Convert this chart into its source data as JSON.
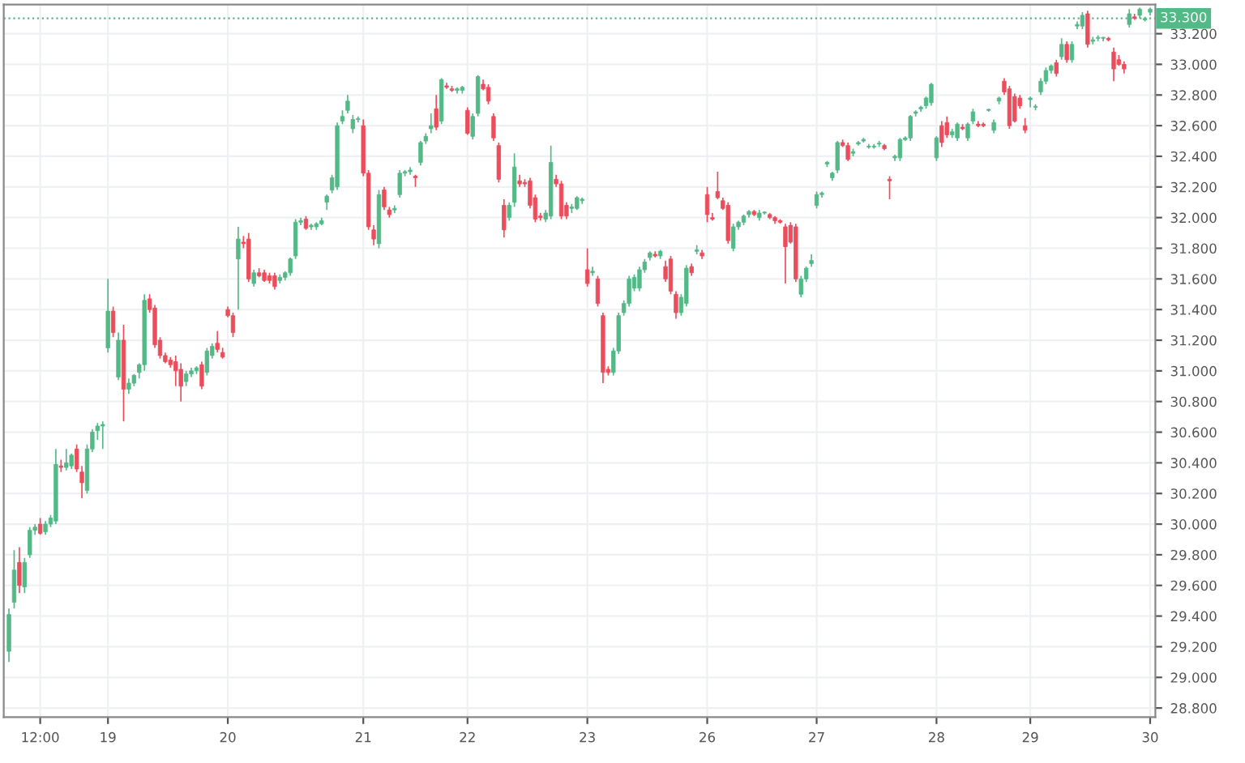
{
  "chart_data": {
    "type": "candlestick",
    "categories": [
      null,
      null,
      null,
      null,
      null,
      null,
      "12:00",
      null,
      null,
      null,
      null,
      null,
      null,
      null,
      null,
      null,
      null,
      null,
      null,
      "19",
      null,
      null,
      null,
      null,
      null,
      null,
      null,
      null,
      null,
      null,
      null,
      null,
      null,
      null,
      null,
      null,
      null,
      null,
      null,
      null,
      null,
      null,
      "20",
      null,
      null,
      null,
      null,
      null,
      null,
      null,
      null,
      null,
      null,
      null,
      null,
      null,
      null,
      null,
      null,
      null,
      null,
      null,
      null,
      null,
      null,
      null,
      null,
      null,
      "21",
      null,
      null,
      null,
      null,
      null,
      null,
      null,
      null,
      null,
      null,
      null,
      null,
      null,
      null,
      null,
      null,
      null,
      null,
      null,
      "22",
      null,
      null,
      null,
      null,
      null,
      null,
      null,
      null,
      null,
      null,
      null,
      null,
      null,
      null,
      null,
      null,
      null,
      null,
      null,
      null,
      null,
      null,
      "23",
      null,
      null,
      null,
      null,
      null,
      null,
      null,
      null,
      null,
      null,
      null,
      null,
      null,
      null,
      null,
      null,
      null,
      null,
      null,
      null,
      null,
      null,
      "26",
      null,
      null,
      null,
      null,
      null,
      null,
      null,
      null,
      null,
      null,
      null,
      null,
      null,
      null,
      null,
      null,
      null,
      null,
      null,
      null,
      "27",
      null,
      null,
      null,
      null,
      null,
      null,
      null,
      null,
      null,
      null,
      null,
      null,
      null,
      null,
      null,
      null,
      null,
      null,
      null,
      null,
      null,
      null,
      "28",
      null,
      null,
      null,
      null,
      null,
      null,
      null,
      null,
      null,
      null,
      null,
      null,
      null,
      null,
      null,
      null,
      null,
      "29",
      null,
      null,
      null,
      null,
      null,
      null,
      null,
      null,
      null,
      null,
      null,
      null,
      null,
      null,
      null,
      null,
      null,
      null,
      null,
      null,
      null,
      null,
      "30"
    ],
    "ohlc": [
      [
        29.17,
        29.45,
        29.1,
        29.41
      ],
      [
        29.49,
        29.83,
        29.45,
        29.7
      ],
      [
        29.75,
        29.85,
        29.55,
        29.6
      ],
      [
        29.59,
        29.78,
        29.55,
        29.75
      ],
      [
        29.8,
        29.98,
        29.78,
        29.96
      ],
      [
        29.96,
        30.0,
        29.93,
        29.98
      ],
      [
        30.0,
        30.04,
        29.93,
        29.94
      ],
      [
        29.95,
        30.02,
        29.93,
        30.0
      ],
      [
        30.0,
        30.06,
        29.98,
        30.04
      ],
      [
        30.02,
        30.49,
        30.0,
        30.39
      ],
      [
        30.38,
        30.42,
        30.34,
        30.37
      ],
      [
        30.37,
        30.49,
        30.35,
        30.4
      ],
      [
        30.38,
        30.46,
        30.36,
        30.45
      ],
      [
        30.49,
        30.52,
        30.34,
        30.36
      ],
      [
        30.34,
        30.38,
        30.17,
        30.27
      ],
      [
        30.22,
        30.52,
        30.2,
        30.49
      ],
      [
        30.49,
        30.62,
        30.47,
        30.6
      ],
      [
        30.61,
        30.66,
        30.55,
        30.64
      ],
      [
        30.64,
        30.67,
        30.49,
        30.65
      ],
      [
        31.15,
        31.6,
        31.12,
        31.39
      ],
      [
        31.39,
        31.42,
        31.22,
        31.25
      ],
      [
        30.96,
        31.25,
        30.94,
        31.2
      ],
      [
        31.2,
        31.3,
        30.67,
        30.88
      ],
      [
        30.88,
        30.95,
        30.85,
        30.92
      ],
      [
        30.92,
        30.98,
        30.9,
        30.97
      ],
      [
        30.99,
        31.05,
        30.95,
        31.04
      ],
      [
        31.04,
        31.5,
        31.0,
        31.46
      ],
      [
        31.47,
        31.5,
        31.38,
        31.4
      ],
      [
        31.41,
        31.43,
        31.15,
        31.17
      ],
      [
        31.2,
        31.22,
        31.08,
        31.1
      ],
      [
        31.1,
        31.12,
        31.05,
        31.06
      ],
      [
        31.07,
        31.09,
        31.02,
        31.04
      ],
      [
        31.06,
        31.1,
        30.9,
        31.0
      ],
      [
        31.01,
        31.05,
        30.8,
        30.9
      ],
      [
        30.93,
        31.0,
        30.9,
        30.98
      ],
      [
        30.98,
        31.02,
        30.96,
        31.0
      ],
      [
        31.0,
        31.03,
        30.98,
        31.02
      ],
      [
        31.04,
        31.06,
        30.88,
        30.9
      ],
      [
        30.99,
        31.15,
        30.97,
        31.13
      ],
      [
        31.1,
        31.18,
        31.08,
        31.16
      ],
      [
        31.18,
        31.26,
        31.12,
        31.14
      ],
      [
        31.12,
        31.15,
        31.08,
        31.09
      ],
      [
        31.4,
        31.42,
        31.35,
        31.36
      ],
      [
        31.36,
        31.38,
        31.22,
        31.25
      ],
      [
        31.73,
        31.94,
        31.4,
        31.86
      ],
      [
        31.84,
        31.88,
        31.8,
        31.83
      ],
      [
        31.86,
        31.9,
        31.58,
        31.6
      ],
      [
        31.57,
        31.66,
        31.55,
        31.64
      ],
      [
        31.64,
        31.67,
        31.61,
        31.62
      ],
      [
        31.64,
        31.66,
        31.58,
        31.59
      ],
      [
        31.62,
        31.64,
        31.57,
        31.59
      ],
      [
        31.62,
        31.64,
        31.53,
        31.55
      ],
      [
        31.59,
        31.63,
        31.57,
        31.61
      ],
      [
        31.61,
        31.65,
        31.59,
        31.64
      ],
      [
        31.64,
        31.74,
        31.62,
        31.73
      ],
      [
        31.75,
        31.99,
        31.73,
        31.97
      ],
      [
        31.97,
        32.0,
        31.95,
        31.98
      ],
      [
        31.99,
        32.01,
        31.92,
        31.93
      ],
      [
        31.94,
        31.96,
        31.92,
        31.95
      ],
      [
        31.94,
        31.97,
        31.92,
        31.96
      ],
      [
        31.96,
        32.0,
        31.95,
        31.98
      ],
      [
        32.1,
        32.15,
        32.05,
        32.14
      ],
      [
        32.18,
        32.28,
        32.16,
        32.26
      ],
      [
        32.2,
        32.62,
        32.18,
        32.6
      ],
      [
        32.63,
        32.7,
        32.61,
        32.66
      ],
      [
        32.7,
        32.8,
        32.68,
        32.76
      ],
      [
        32.58,
        32.67,
        32.55,
        32.64
      ],
      [
        32.64,
        32.66,
        32.62,
        32.64
      ],
      [
        32.6,
        32.64,
        32.27,
        32.29
      ],
      [
        32.29,
        32.31,
        31.92,
        31.94
      ],
      [
        31.92,
        31.95,
        31.82,
        31.86
      ],
      [
        31.83,
        32.18,
        31.8,
        32.15
      ],
      [
        32.18,
        32.2,
        32.05,
        32.07
      ],
      [
        32.05,
        32.07,
        32.0,
        32.02
      ],
      [
        32.05,
        32.08,
        32.03,
        32.06
      ],
      [
        32.15,
        32.31,
        32.13,
        32.29
      ],
      [
        32.29,
        32.31,
        32.27,
        32.3
      ],
      [
        32.3,
        32.33,
        32.28,
        32.31
      ],
      [
        32.27,
        32.28,
        32.2,
        32.26
      ],
      [
        32.36,
        32.5,
        32.34,
        32.49
      ],
      [
        32.5,
        32.55,
        32.48,
        32.53
      ],
      [
        32.58,
        32.68,
        32.55,
        32.6
      ],
      [
        32.71,
        32.8,
        32.57,
        32.59
      ],
      [
        32.63,
        32.91,
        32.61,
        32.9
      ],
      [
        32.86,
        32.88,
        32.84,
        32.85
      ],
      [
        32.84,
        32.86,
        32.82,
        32.83
      ],
      [
        32.83,
        32.85,
        32.81,
        32.84
      ],
      [
        32.83,
        32.86,
        32.81,
        32.85
      ],
      [
        32.7,
        32.72,
        32.54,
        32.55
      ],
      [
        32.53,
        32.68,
        32.51,
        32.66
      ],
      [
        32.68,
        32.93,
        32.66,
        32.92
      ],
      [
        32.87,
        32.9,
        32.83,
        32.84
      ],
      [
        32.85,
        32.87,
        32.74,
        32.76
      ],
      [
        32.66,
        32.68,
        32.5,
        32.52
      ],
      [
        32.47,
        32.49,
        32.23,
        32.25
      ],
      [
        32.08,
        32.12,
        31.87,
        31.92
      ],
      [
        32.0,
        32.1,
        31.98,
        32.08
      ],
      [
        32.1,
        32.42,
        32.07,
        32.33
      ],
      [
        32.24,
        32.28,
        32.2,
        32.22
      ],
      [
        32.23,
        32.25,
        32.2,
        32.22
      ],
      [
        32.24,
        32.26,
        32.06,
        32.08
      ],
      [
        32.13,
        32.15,
        31.97,
        31.99
      ],
      [
        32.01,
        32.03,
        31.98,
        32.0
      ],
      [
        31.99,
        32.05,
        31.97,
        32.03
      ],
      [
        32.01,
        32.47,
        31.99,
        32.36
      ],
      [
        32.25,
        32.28,
        32.2,
        32.22
      ],
      [
        32.22,
        32.24,
        31.99,
        32.01
      ],
      [
        32.08,
        32.1,
        31.99,
        32.01
      ],
      [
        32.06,
        32.09,
        32.03,
        32.07
      ],
      [
        32.06,
        32.14,
        32.05,
        32.13
      ],
      [
        32.11,
        32.13,
        32.09,
        32.12
      ],
      [
        31.66,
        31.8,
        31.55,
        31.57
      ],
      [
        31.64,
        31.68,
        31.62,
        31.65
      ],
      [
        31.6,
        31.62,
        31.42,
        31.44
      ],
      [
        31.36,
        31.38,
        30.92,
        30.99
      ],
      [
        31.01,
        31.03,
        30.97,
        30.99
      ],
      [
        30.99,
        31.15,
        30.97,
        31.13
      ],
      [
        31.13,
        31.38,
        31.11,
        31.36
      ],
      [
        31.38,
        31.46,
        31.36,
        31.44
      ],
      [
        31.44,
        31.62,
        31.42,
        31.6
      ],
      [
        31.54,
        31.63,
        31.52,
        31.61
      ],
      [
        31.54,
        31.68,
        31.52,
        31.66
      ],
      [
        31.66,
        31.73,
        31.64,
        31.71
      ],
      [
        31.74,
        31.78,
        31.72,
        31.77
      ],
      [
        31.76,
        31.78,
        31.74,
        31.75
      ],
      [
        31.75,
        31.79,
        31.73,
        31.78
      ],
      [
        31.68,
        31.72,
        31.58,
        31.6
      ],
      [
        31.73,
        31.75,
        31.5,
        31.52
      ],
      [
        31.5,
        31.52,
        31.34,
        31.38
      ],
      [
        31.38,
        31.5,
        31.36,
        31.48
      ],
      [
        31.44,
        31.69,
        31.42,
        31.67
      ],
      [
        31.68,
        31.7,
        31.62,
        31.64
      ],
      [
        31.78,
        31.82,
        31.76,
        31.79
      ],
      [
        31.77,
        31.79,
        31.73,
        31.75
      ],
      [
        32.15,
        32.2,
        31.97,
        32.02
      ],
      [
        32.0,
        32.03,
        31.98,
        31.99
      ],
      [
        32.17,
        32.3,
        32.12,
        32.13
      ],
      [
        32.11,
        32.13,
        32.05,
        32.06
      ],
      [
        32.08,
        32.1,
        31.83,
        31.85
      ],
      [
        31.8,
        31.96,
        31.78,
        31.94
      ],
      [
        31.94,
        31.98,
        31.92,
        31.97
      ],
      [
        31.97,
        32.02,
        31.95,
        32.01
      ],
      [
        32.02,
        32.05,
        32.0,
        32.04
      ],
      [
        32.04,
        32.05,
        32.01,
        32.02
      ],
      [
        32.0,
        32.05,
        31.98,
        32.03
      ],
      [
        32.03,
        32.04,
        32.02,
        32.03
      ],
      [
        32.02,
        32.03,
        31.99,
        32.0
      ],
      [
        32.0,
        32.01,
        31.96,
        31.98
      ],
      [
        31.98,
        31.99,
        31.96,
        31.97
      ],
      [
        31.94,
        31.96,
        31.57,
        31.81
      ],
      [
        31.95,
        31.97,
        31.83,
        31.84
      ],
      [
        31.94,
        31.96,
        31.58,
        31.6
      ],
      [
        31.5,
        31.62,
        31.48,
        31.6
      ],
      [
        31.6,
        31.68,
        31.58,
        31.67
      ],
      [
        31.7,
        31.76,
        31.68,
        31.72
      ],
      [
        32.08,
        32.17,
        32.06,
        32.15
      ],
      [
        32.15,
        32.17,
        32.13,
        32.16
      ],
      [
        32.35,
        32.37,
        32.33,
        32.36
      ],
      [
        32.26,
        32.3,
        32.24,
        32.29
      ],
      [
        32.31,
        32.5,
        32.29,
        32.49
      ],
      [
        32.49,
        32.51,
        32.46,
        32.47
      ],
      [
        32.47,
        32.49,
        32.37,
        32.38
      ],
      [
        32.42,
        32.45,
        32.4,
        32.43
      ],
      [
        32.48,
        32.5,
        32.47,
        32.49
      ],
      [
        32.5,
        32.52,
        32.49,
        32.51
      ],
      [
        32.46,
        32.48,
        32.45,
        32.46
      ],
      [
        32.46,
        32.48,
        32.45,
        32.46
      ],
      [
        32.48,
        32.5,
        32.46,
        32.48
      ],
      [
        32.47,
        32.48,
        32.44,
        32.45
      ],
      [
        32.25,
        32.27,
        32.12,
        32.24
      ],
      [
        32.39,
        32.41,
        32.37,
        32.4
      ],
      [
        32.39,
        32.52,
        32.37,
        32.51
      ],
      [
        32.51,
        32.53,
        32.5,
        32.52
      ],
      [
        32.52,
        32.67,
        32.5,
        32.66
      ],
      [
        32.68,
        32.7,
        32.66,
        32.69
      ],
      [
        32.71,
        32.73,
        32.69,
        32.72
      ],
      [
        32.73,
        32.79,
        32.71,
        32.78
      ],
      [
        32.75,
        32.88,
        32.73,
        32.87
      ],
      [
        32.39,
        32.53,
        32.37,
        32.52
      ],
      [
        32.6,
        32.63,
        32.46,
        32.49
      ],
      [
        32.62,
        32.66,
        32.52,
        32.54
      ],
      [
        32.54,
        32.58,
        32.52,
        32.56
      ],
      [
        32.52,
        32.62,
        32.5,
        32.61
      ],
      [
        32.59,
        32.61,
        32.57,
        32.58
      ],
      [
        32.52,
        32.62,
        32.5,
        32.61
      ],
      [
        32.63,
        32.71,
        32.61,
        32.69
      ],
      [
        32.61,
        32.63,
        32.59,
        32.6
      ],
      [
        32.61,
        32.62,
        32.59,
        32.6
      ],
      [
        32.7,
        32.71,
        32.69,
        32.7
      ],
      [
        32.57,
        32.64,
        32.55,
        32.62
      ],
      [
        32.76,
        32.79,
        32.74,
        32.78
      ],
      [
        32.89,
        32.91,
        32.8,
        32.82
      ],
      [
        32.84,
        32.86,
        32.58,
        32.6
      ],
      [
        32.79,
        32.81,
        32.62,
        32.63
      ],
      [
        32.78,
        32.8,
        32.71,
        32.73
      ],
      [
        32.6,
        32.65,
        32.55,
        32.57
      ],
      [
        32.77,
        32.79,
        32.72,
        32.78
      ],
      [
        32.72,
        32.74,
        32.7,
        32.72
      ],
      [
        32.82,
        32.91,
        32.8,
        32.89
      ],
      [
        32.89,
        32.98,
        32.87,
        32.96
      ],
      [
        32.96,
        33.0,
        32.94,
        32.99
      ],
      [
        33.01,
        33.03,
        32.92,
        32.94
      ],
      [
        33.05,
        33.17,
        33.03,
        33.13
      ],
      [
        33.13,
        33.15,
        33.01,
        33.03
      ],
      [
        33.03,
        33.15,
        33.01,
        33.13
      ],
      [
        33.25,
        33.28,
        33.23,
        33.26
      ],
      [
        33.25,
        33.34,
        33.23,
        33.32
      ],
      [
        33.33,
        33.35,
        33.11,
        33.13
      ],
      [
        33.15,
        33.18,
        33.13,
        33.16
      ],
      [
        33.17,
        33.19,
        33.15,
        33.17
      ],
      [
        33.17,
        33.18,
        33.15,
        33.17
      ],
      [
        33.17,
        33.18,
        33.15,
        33.16
      ],
      [
        33.08,
        33.11,
        32.89,
        32.97
      ],
      [
        33.03,
        33.06,
        32.99,
        33.0
      ],
      [
        33.0,
        33.02,
        32.94,
        32.97
      ],
      [
        33.26,
        33.36,
        33.24,
        33.33
      ],
      [
        33.31,
        33.33,
        33.29,
        33.3
      ],
      [
        33.32,
        33.37,
        33.3,
        33.36
      ],
      [
        33.29,
        33.31,
        33.28,
        33.3
      ],
      [
        33.34,
        33.37,
        33.32,
        33.36
      ]
    ],
    "colors": [
      "#53b987",
      "#53b987",
      "#eb4d5c",
      "#53b987",
      "#53b987",
      "#53b987",
      "#eb4d5c",
      "#53b987",
      "#53b987",
      "#53b987",
      "#eb4d5c",
      "#53b987",
      "#53b987",
      "#eb4d5c",
      "#eb4d5c",
      "#53b987",
      "#53b987",
      "#53b987",
      "#53b987",
      "#53b987",
      "#eb4d5c",
      "#53b987",
      "#eb4d5c",
      "#53b987",
      "#53b987",
      "#53b987",
      "#53b987",
      "#eb4d5c",
      "#eb4d5c",
      "#eb4d5c",
      "#eb4d5c",
      "#eb4d5c",
      "#eb4d5c",
      "#eb4d5c",
      "#53b987",
      "#53b987",
      "#53b987",
      "#eb4d5c",
      "#53b987",
      "#53b987",
      "#eb4d5c",
      "#eb4d5c",
      "#eb4d5c",
      "#eb4d5c",
      "#53b987",
      "#eb4d5c",
      "#eb4d5c",
      "#53b987",
      "#eb4d5c",
      "#eb4d5c",
      "#eb4d5c",
      "#eb4d5c",
      "#53b987",
      "#53b987",
      "#53b987",
      "#53b987",
      "#53b987",
      "#eb4d5c",
      "#53b987",
      "#53b987",
      "#53b987",
      "#53b987",
      "#53b987",
      "#53b987",
      "#53b987",
      "#53b987",
      "#53b987",
      "#53b987",
      "#eb4d5c",
      "#eb4d5c",
      "#eb4d5c",
      "#53b987",
      "#eb4d5c",
      "#eb4d5c",
      "#53b987",
      "#53b987",
      "#53b987",
      "#53b987",
      "#eb4d5c",
      "#53b987",
      "#53b987",
      "#53b987",
      "#eb4d5c",
      "#53b987",
      "#eb4d5c",
      "#eb4d5c",
      "#53b987",
      "#53b987",
      "#eb4d5c",
      "#53b987",
      "#53b987",
      "#eb4d5c",
      "#eb4d5c",
      "#eb4d5c",
      "#eb4d5c",
      "#eb4d5c",
      "#53b987",
      "#53b987",
      "#eb4d5c",
      "#eb4d5c",
      "#eb4d5c",
      "#eb4d5c",
      "#eb4d5c",
      "#53b987",
      "#53b987",
      "#eb4d5c",
      "#eb4d5c",
      "#eb4d5c",
      "#53b987",
      "#53b987",
      "#53b987",
      "#eb4d5c",
      "#53b987",
      "#eb4d5c",
      "#eb4d5c",
      "#eb4d5c",
      "#53b987",
      "#53b987",
      "#53b987",
      "#53b987",
      "#53b987",
      "#53b987",
      "#53b987",
      "#53b987",
      "#eb4d5c",
      "#53b987",
      "#eb4d5c",
      "#eb4d5c",
      "#eb4d5c",
      "#53b987",
      "#53b987",
      "#eb4d5c",
      "#53b987",
      "#eb4d5c",
      "#eb4d5c",
      "#eb4d5c",
      "#eb4d5c",
      "#eb4d5c",
      "#eb4d5c",
      "#53b987",
      "#53b987",
      "#53b987",
      "#53b987",
      "#eb4d5c",
      "#53b987",
      "#53b987",
      "#eb4d5c",
      "#eb4d5c",
      "#eb4d5c",
      "#eb4d5c",
      "#eb4d5c",
      "#eb4d5c",
      "#53b987",
      "#53b987",
      "#53b987",
      "#53b987",
      "#53b987",
      "#53b987",
      "#53b987",
      "#53b987",
      "#eb4d5c",
      "#eb4d5c",
      "#53b987",
      "#53b987",
      "#53b987",
      "#53b987",
      "#53b987",
      "#53b987",
      "#eb4d5c",
      "#eb4d5c",
      "#53b987",
      "#53b987",
      "#53b987",
      "#53b987",
      "#53b987",
      "#53b987",
      "#53b987",
      "#53b987",
      "#53b987",
      "#eb4d5c",
      "#eb4d5c",
      "#53b987",
      "#53b987",
      "#eb4d5c",
      "#53b987",
      "#53b987",
      "#eb4d5c",
      "#eb4d5c",
      "#53b987",
      "#53b987",
      "#53b987",
      "#eb4d5c",
      "#eb4d5c",
      "#eb4d5c",
      "#eb4d5c",
      "#eb4d5c",
      "#53b987",
      "#53b987",
      "#53b987",
      "#53b987",
      "#53b987",
      "#eb4d5c",
      "#53b987",
      "#eb4d5c",
      "#53b987",
      "#53b987",
      "#53b987",
      "#eb4d5c",
      "#53b987",
      "#53b987",
      "#53b987",
      "#eb4d5c",
      "#eb4d5c",
      "#eb4d5c",
      "#eb4d5c",
      "#53b987",
      "#eb4d5c",
      "#53b987",
      "#53b987",
      "#53b987"
    ],
    "ylim": [
      28.74,
      33.39
    ],
    "yticks": [
      {
        "value": 28.8,
        "label": "28.800"
      },
      {
        "value": 29.0,
        "label": "29.000"
      },
      {
        "value": 29.2,
        "label": "29.200"
      },
      {
        "value": 29.4,
        "label": "29.400"
      },
      {
        "value": 29.6,
        "label": "29.600"
      },
      {
        "value": 29.8,
        "label": "29.800"
      },
      {
        "value": 30.0,
        "label": "30.000"
      },
      {
        "value": 30.2,
        "label": "30.200"
      },
      {
        "value": 30.4,
        "label": "30.400"
      },
      {
        "value": 30.6,
        "label": "30.600"
      },
      {
        "value": 30.8,
        "label": "30.800"
      },
      {
        "value": 31.0,
        "label": "31.000"
      },
      {
        "value": 31.2,
        "label": "31.200"
      },
      {
        "value": 31.4,
        "label": "31.400"
      },
      {
        "value": 31.6,
        "label": "31.600"
      },
      {
        "value": 31.8,
        "label": "31.800"
      },
      {
        "value": 32.0,
        "label": "32.000"
      },
      {
        "value": 32.2,
        "label": "32.200"
      },
      {
        "value": 32.4,
        "label": "32.400"
      },
      {
        "value": 32.6,
        "label": "32.600"
      },
      {
        "value": 32.8,
        "label": "32.800"
      },
      {
        "value": 33.0,
        "label": "33.000"
      },
      {
        "value": 33.2,
        "label": "33.200"
      }
    ],
    "ref_lines": [
      {
        "axis": "y",
        "value": 33.3,
        "label": "33.300",
        "color": "#53b987",
        "line_style": "dotted"
      }
    ],
    "grid": true
  }
}
